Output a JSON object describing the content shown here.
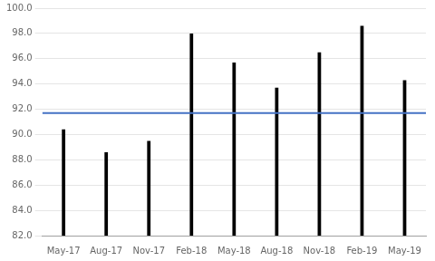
{
  "chart_data": {
    "type": "bar",
    "categories": [
      "May-17",
      "Aug-17",
      "Nov-17",
      "Feb-18",
      "May-18",
      "Aug-18",
      "Nov-18",
      "Feb-19",
      "May-19"
    ],
    "values": [
      90.4,
      88.6,
      89.5,
      98.0,
      95.7,
      93.7,
      96.5,
      98.6,
      94.3
    ],
    "color": "#000000",
    "average_line": {
      "value": 91.7,
      "color": "#4472c4"
    },
    "ylim": [
      82.0,
      100.0
    ],
    "yticks": [
      {
        "value": 82.0,
        "label": "82.0"
      },
      {
        "value": 84.0,
        "label": "84.0"
      },
      {
        "value": 86.0,
        "label": "86.0"
      },
      {
        "value": 88.0,
        "label": "88.0"
      },
      {
        "value": 90.0,
        "label": "90.0"
      },
      {
        "value": 92.0,
        "label": "92.0"
      },
      {
        "value": 94.0,
        "label": "94.0"
      },
      {
        "value": 96.0,
        "label": "96.0"
      },
      {
        "value": 98.0,
        "label": "98.0"
      },
      {
        "value": 100.0,
        "label": "100.0"
      }
    ],
    "grid": true
  }
}
